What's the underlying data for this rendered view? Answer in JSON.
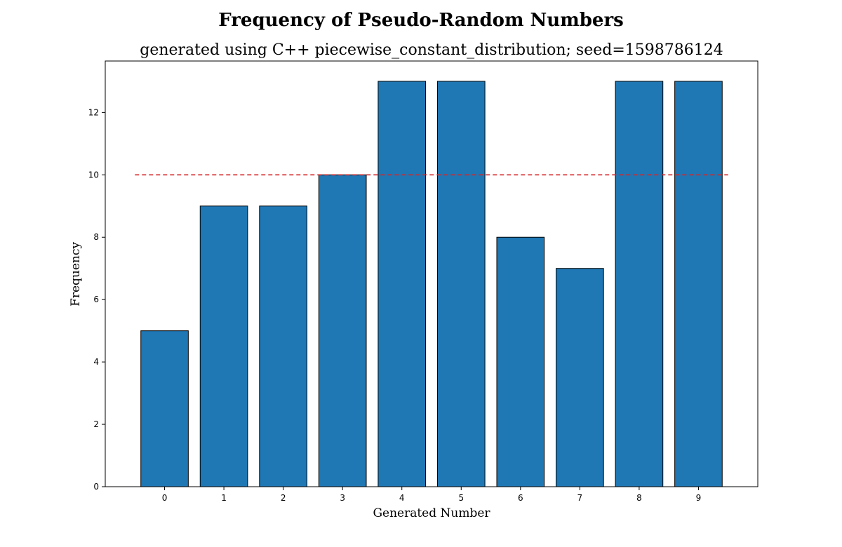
{
  "chart_data": {
    "type": "bar",
    "title": "Frequency of Pseudo-Random Numbers",
    "subtitle": "generated using C++ piecewise_constant_distribution; seed=1598786124",
    "xlabel": "Generated Number",
    "ylabel": "Frequency",
    "categories": [
      "0",
      "1",
      "2",
      "3",
      "4",
      "5",
      "6",
      "7",
      "8",
      "9"
    ],
    "values": [
      5,
      9,
      9,
      10,
      13,
      13,
      8,
      7,
      13,
      13
    ],
    "ylim": [
      0,
      13.65
    ],
    "yticks": [
      0,
      2,
      4,
      6,
      8,
      10,
      12
    ],
    "reference_line": {
      "y": 10,
      "style": "dashed",
      "color": "#d62728"
    },
    "bar_color": "#1f77b4",
    "bar_edge_color": "#000000",
    "grid": false,
    "legend": "none"
  }
}
